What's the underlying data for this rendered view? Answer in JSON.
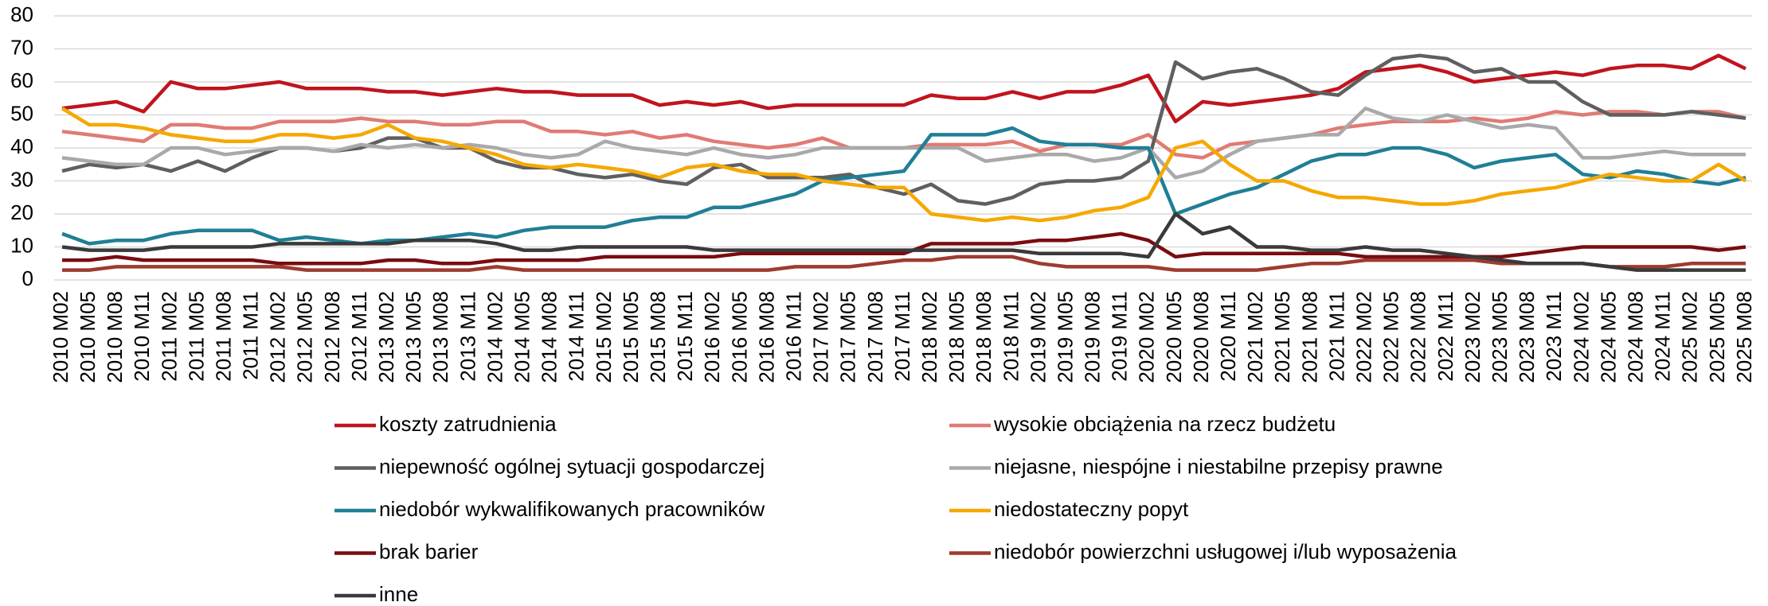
{
  "chart_data": {
    "type": "line",
    "legend": "bottom",
    "grid": true,
    "ylim": [
      0,
      80
    ],
    "yticks": [
      0,
      10,
      20,
      30,
      40,
      50,
      60,
      70,
      80
    ],
    "categories": [
      "2010 M02",
      "2010 M05",
      "2010 M08",
      "2010 M11",
      "2011 M02",
      "2011 M05",
      "2011 M08",
      "2011 M11",
      "2012 M02",
      "2012 M05",
      "2012 M08",
      "2012 M11",
      "2013 M02",
      "2013 M05",
      "2013 M08",
      "2013 M11",
      "2014 M02",
      "2014 M05",
      "2014 M08",
      "2014 M11",
      "2015 M02",
      "2015 M05",
      "2015 M08",
      "2015 M11",
      "2016 M02",
      "2016 M05",
      "2016 M08",
      "2016 M11",
      "2017 M02",
      "2017 M05",
      "2017 M08",
      "2017 M11",
      "2018 M02",
      "2018 M05",
      "2018 M08",
      "2018 M11",
      "2019 M02",
      "2019 M05",
      "2019 M08",
      "2019 M11",
      "2020 M02",
      "2020 M05",
      "2020 M08",
      "2020 M11",
      "2021 M02",
      "2021 M05",
      "2021 M08",
      "2021 M11",
      "2022 M02",
      "2022 M05",
      "2022 M08",
      "2022 M11",
      "2023 M02",
      "2023 M05",
      "2023 M08",
      "2023 M11",
      "2024 M02",
      "2024 M05",
      "2024 M08",
      "2024 M11",
      "2025 M02",
      "2025 M05",
      "2025 M08"
    ],
    "series": [
      {
        "name": "koszty zatrudnienia",
        "color": "#c0141e",
        "values": [
          52,
          53,
          54,
          51,
          60,
          58,
          58,
          59,
          60,
          58,
          58,
          58,
          57,
          57,
          56,
          57,
          58,
          57,
          57,
          56,
          56,
          56,
          53,
          54,
          53,
          54,
          52,
          53,
          53,
          53,
          53,
          53,
          56,
          55,
          55,
          57,
          55,
          57,
          57,
          59,
          62,
          48,
          54,
          53,
          54,
          55,
          56,
          58,
          63,
          64,
          65,
          63,
          60,
          61,
          62,
          63,
          62,
          64,
          65,
          65,
          64,
          68,
          64
        ]
      },
      {
        "name": "wysokie obciążenia na rzecz budżetu",
        "color": "#e07b74",
        "values": [
          45,
          44,
          43,
          42,
          47,
          47,
          46,
          46,
          48,
          48,
          48,
          49,
          48,
          48,
          47,
          47,
          48,
          48,
          45,
          45,
          44,
          45,
          43,
          44,
          42,
          41,
          40,
          41,
          43,
          40,
          40,
          40,
          41,
          41,
          41,
          42,
          39,
          41,
          41,
          41,
          44,
          38,
          37,
          41,
          42,
          43,
          44,
          46,
          47,
          48,
          48,
          48,
          49,
          48,
          49,
          51,
          50,
          51,
          51,
          50,
          51,
          51,
          49
        ]
      },
      {
        "name": "niepewność ogólnej sytuacji gospodarczej",
        "color": "#5f5f5f",
        "values": [
          33,
          35,
          34,
          35,
          33,
          36,
          33,
          37,
          40,
          40,
          39,
          40,
          43,
          43,
          40,
          40,
          36,
          34,
          34,
          32,
          31,
          32,
          30,
          29,
          34,
          35,
          31,
          31,
          31,
          32,
          28,
          26,
          29,
          24,
          23,
          25,
          29,
          30,
          30,
          31,
          36,
          66,
          61,
          63,
          64,
          61,
          57,
          56,
          62,
          67,
          68,
          67,
          63,
          64,
          60,
          60,
          54,
          50,
          50,
          50,
          51,
          50,
          49
        ]
      },
      {
        "name": "niejasne, niespójne i niestabilne przepisy prawne",
        "color": "#a9a9a9",
        "values": [
          37,
          36,
          35,
          35,
          40,
          40,
          38,
          39,
          40,
          40,
          39,
          41,
          40,
          41,
          40,
          41,
          40,
          38,
          37,
          38,
          42,
          40,
          39,
          38,
          40,
          38,
          37,
          38,
          40,
          40,
          40,
          40,
          40,
          40,
          36,
          37,
          38,
          38,
          36,
          37,
          40,
          31,
          33,
          38,
          42,
          43,
          44,
          44,
          52,
          49,
          48,
          50,
          48,
          46,
          47,
          46,
          37,
          37,
          38,
          39,
          38,
          38,
          38
        ]
      },
      {
        "name": "niedobór wykwalifikowanych pracowników",
        "color": "#1f7f95",
        "values": [
          14,
          11,
          12,
          12,
          14,
          15,
          15,
          15,
          12,
          13,
          12,
          11,
          12,
          12,
          13,
          14,
          13,
          15,
          16,
          16,
          16,
          18,
          19,
          19,
          22,
          22,
          24,
          26,
          30,
          31,
          32,
          33,
          44,
          44,
          44,
          46,
          42,
          41,
          41,
          40,
          40,
          20,
          23,
          26,
          28,
          32,
          36,
          38,
          38,
          40,
          40,
          38,
          34,
          36,
          37,
          38,
          32,
          31,
          33,
          32,
          30,
          29,
          31
        ]
      },
      {
        "name": "niedostateczny popyt",
        "color": "#f5a800",
        "values": [
          52,
          47,
          47,
          46,
          44,
          43,
          42,
          42,
          44,
          44,
          43,
          44,
          47,
          43,
          42,
          40,
          38,
          35,
          34,
          35,
          34,
          33,
          31,
          34,
          35,
          33,
          32,
          32,
          30,
          29,
          28,
          28,
          20,
          19,
          18,
          19,
          18,
          19,
          21,
          22,
          25,
          40,
          42,
          35,
          30,
          30,
          27,
          25,
          25,
          24,
          23,
          23,
          24,
          26,
          27,
          28,
          30,
          32,
          31,
          30,
          30,
          35,
          30
        ]
      },
      {
        "name": "brak barier",
        "color": "#7a0c10",
        "values": [
          6,
          6,
          7,
          6,
          6,
          6,
          6,
          6,
          5,
          5,
          5,
          5,
          6,
          6,
          5,
          5,
          6,
          6,
          6,
          6,
          7,
          7,
          7,
          7,
          7,
          8,
          8,
          8,
          8,
          8,
          8,
          8,
          11,
          11,
          11,
          11,
          12,
          12,
          13,
          14,
          12,
          7,
          8,
          8,
          8,
          8,
          8,
          8,
          7,
          7,
          7,
          7,
          7,
          7,
          8,
          9,
          10,
          10,
          10,
          10,
          10,
          9,
          10
        ]
      },
      {
        "name": "niedobór powierzchni usługowej i/lub wyposażenia",
        "color": "#9e3b2f",
        "values": [
          3,
          3,
          4,
          4,
          4,
          4,
          4,
          4,
          4,
          3,
          3,
          3,
          3,
          3,
          3,
          3,
          4,
          3,
          3,
          3,
          3,
          3,
          3,
          3,
          3,
          3,
          3,
          4,
          4,
          4,
          5,
          6,
          6,
          7,
          7,
          7,
          5,
          4,
          4,
          4,
          4,
          3,
          3,
          3,
          3,
          4,
          5,
          5,
          6,
          6,
          6,
          6,
          6,
          5,
          5,
          5,
          5,
          4,
          4,
          4,
          5,
          5,
          5
        ]
      },
      {
        "name": "inne",
        "color": "#3a3a3a",
        "values": [
          10,
          9,
          9,
          9,
          10,
          10,
          10,
          10,
          11,
          11,
          11,
          11,
          11,
          12,
          12,
          12,
          11,
          9,
          9,
          10,
          10,
          10,
          10,
          10,
          9,
          9,
          9,
          9,
          9,
          9,
          9,
          9,
          9,
          9,
          9,
          9,
          8,
          8,
          8,
          8,
          7,
          20,
          14,
          16,
          10,
          10,
          9,
          9,
          10,
          9,
          9,
          8,
          7,
          6,
          5,
          5,
          5,
          4,
          3,
          3,
          3,
          3,
          3
        ]
      }
    ]
  }
}
